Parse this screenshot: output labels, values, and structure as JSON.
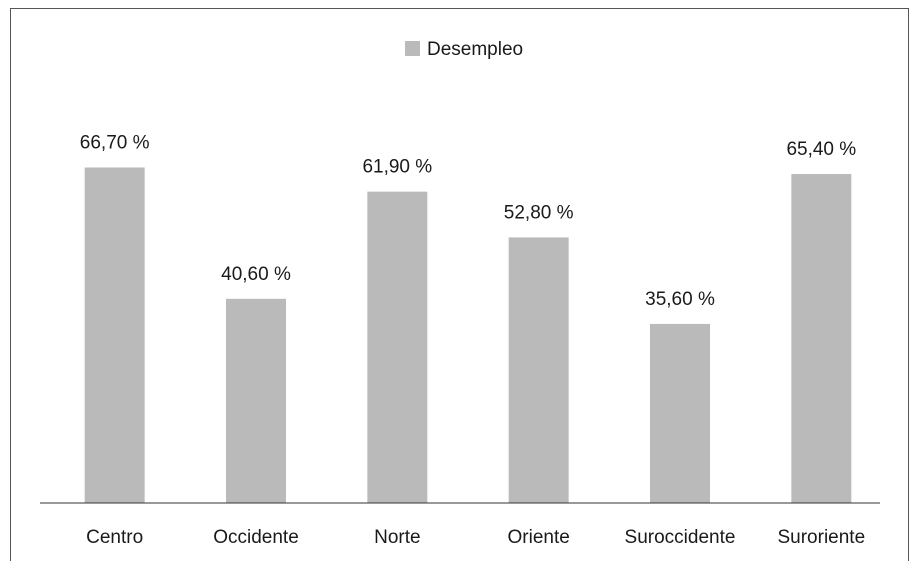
{
  "chart_data": {
    "type": "bar",
    "categories": [
      "Centro",
      "Occidente",
      "Norte",
      "Oriente",
      "Suroccidente",
      "Suroriente"
    ],
    "series": [
      {
        "name": "Desempleo",
        "color": "#bababa",
        "values": [
          66.7,
          40.6,
          61.9,
          52.8,
          35.6,
          65.4
        ],
        "value_labels": [
          "66,70 %",
          "40,60 %",
          "61,90 %",
          "52,80 %",
          "35,60 %",
          "65,40 %"
        ]
      }
    ],
    "ylim": [
      0,
      100
    ],
    "legend": "top"
  }
}
